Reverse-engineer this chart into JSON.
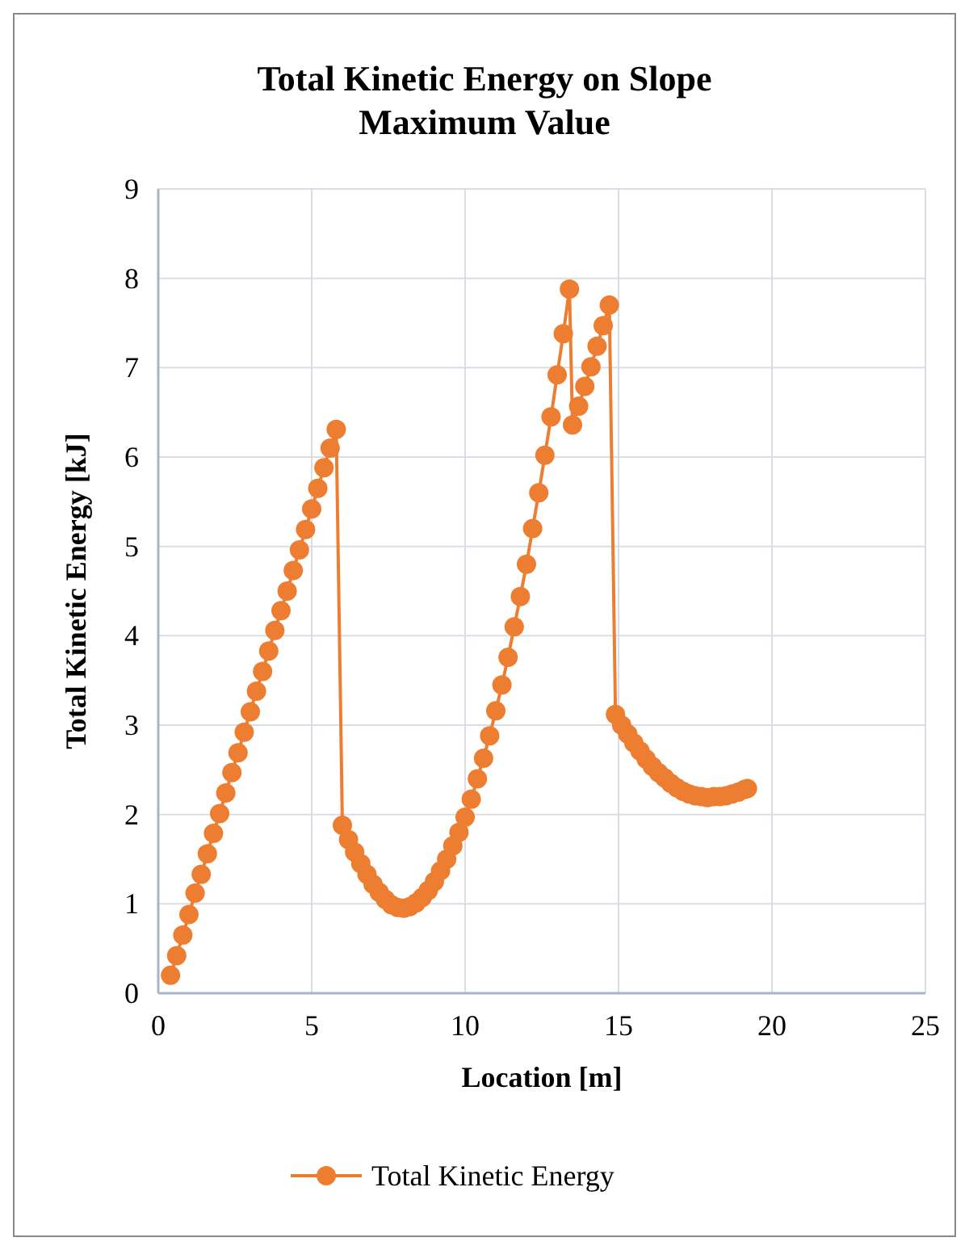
{
  "chart_data": {
    "type": "line",
    "title": "Total Kinetic Energy on Slope",
    "subtitle": "Maximum Value",
    "xlabel": "Location [m]",
    "ylabel": "Total Kinetic Energy [kJ]",
    "xlim": [
      0,
      25
    ],
    "xticks": [
      0,
      5,
      10,
      15,
      20,
      25
    ],
    "ylim": [
      0,
      9
    ],
    "yticks": [
      0,
      1,
      2,
      3,
      4,
      5,
      6,
      7,
      8,
      9
    ],
    "grid": true,
    "legend": "bottom",
    "marker": "circle",
    "line_style": "solid",
    "series": [
      {
        "name": "Total Kinetic Energy",
        "color": "#ed7d31",
        "x": [
          0.4,
          0.6,
          0.8,
          1.0,
          1.2,
          1.4,
          1.6,
          1.8,
          2.0,
          2.2,
          2.4,
          2.6,
          2.8,
          3.0,
          3.2,
          3.4,
          3.6,
          3.8,
          4.0,
          4.2,
          4.4,
          4.6,
          4.8,
          5.0,
          5.2,
          5.4,
          5.6,
          5.8,
          6.0,
          6.2,
          6.4,
          6.6,
          6.8,
          7.0,
          7.2,
          7.4,
          7.6,
          7.8,
          8.0,
          8.2,
          8.4,
          8.6,
          8.8,
          9.0,
          9.2,
          9.4,
          9.6,
          9.8,
          10.0,
          10.2,
          10.4,
          10.6,
          10.8,
          11.0,
          11.2,
          11.4,
          11.6,
          11.8,
          12.0,
          12.2,
          12.4,
          12.6,
          12.8,
          13.0,
          13.2,
          13.4,
          13.5,
          13.7,
          13.9,
          14.1,
          14.3,
          14.5,
          14.7,
          14.9,
          15.1,
          15.3,
          15.5,
          15.7,
          15.9,
          16.1,
          16.3,
          16.5,
          16.7,
          16.9,
          17.1,
          17.3,
          17.5,
          17.7,
          17.9,
          18.1,
          18.3,
          18.5,
          18.7,
          18.9,
          19.1,
          19.2
        ],
        "values": [
          0.2,
          0.42,
          0.65,
          0.88,
          1.12,
          1.33,
          1.56,
          1.79,
          2.01,
          2.24,
          2.47,
          2.69,
          2.92,
          3.15,
          3.38,
          3.6,
          3.83,
          4.06,
          4.28,
          4.5,
          4.73,
          4.96,
          5.19,
          5.42,
          5.65,
          5.88,
          6.1,
          6.31,
          1.88,
          1.72,
          1.58,
          1.45,
          1.33,
          1.22,
          1.13,
          1.05,
          0.99,
          0.96,
          0.95,
          0.97,
          1.01,
          1.07,
          1.15,
          1.25,
          1.37,
          1.5,
          1.65,
          1.8,
          1.97,
          2.17,
          2.4,
          2.63,
          2.88,
          3.16,
          3.45,
          3.76,
          4.1,
          4.44,
          4.8,
          5.2,
          5.6,
          6.02,
          6.45,
          6.92,
          7.38,
          7.88,
          6.36,
          6.57,
          6.79,
          7.01,
          7.24,
          7.47,
          7.7,
          3.12,
          3.0,
          2.9,
          2.8,
          2.71,
          2.62,
          2.54,
          2.47,
          2.41,
          2.35,
          2.3,
          2.26,
          2.23,
          2.21,
          2.2,
          2.19,
          2.2,
          2.2,
          2.21,
          2.23,
          2.25,
          2.28,
          2.29
        ]
      }
    ]
  }
}
